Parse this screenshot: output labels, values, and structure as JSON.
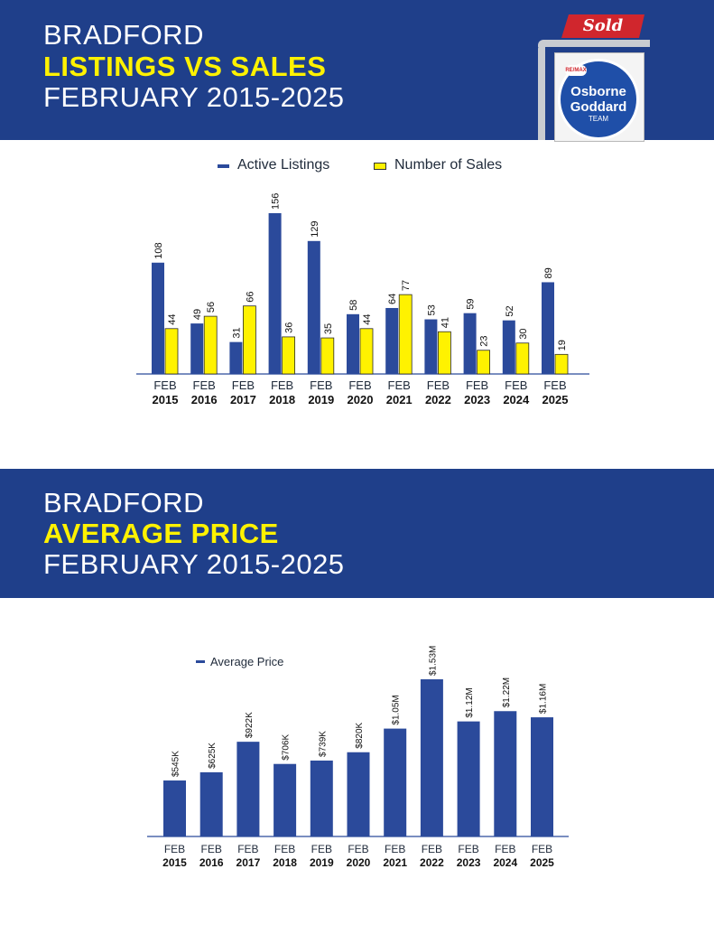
{
  "header1": {
    "line1": "BRADFORD",
    "line2": "LISTINGS VS SALES",
    "line3": "FEBRUARY 2015-2025"
  },
  "header2": {
    "line1": "BRADFORD",
    "line2": "AVERAGE PRICE",
    "line3": "FEBRUARY 2015-2025"
  },
  "logo": {
    "sold": "Sold",
    "remax": "RE/MAX",
    "line1": "Osborne",
    "line2": "Goddard",
    "line3": "TEAM"
  },
  "colors": {
    "banner": "#1f3f8a",
    "highlight": "#fff200",
    "bar_blue": "#2b4a9b",
    "bar_yellow": "#fff200"
  },
  "chart_data": [
    {
      "type": "bar",
      "categories": [
        [
          "FEB",
          "2015"
        ],
        [
          "FEB",
          "2016"
        ],
        [
          "FEB",
          "2017"
        ],
        [
          "FEB",
          "2018"
        ],
        [
          "FEB",
          "2019"
        ],
        [
          "FEB",
          "2020"
        ],
        [
          "FEB",
          "2021"
        ],
        [
          "FEB",
          "2022"
        ],
        [
          "FEB",
          "2023"
        ],
        [
          "FEB",
          "2024"
        ],
        [
          "FEB",
          "2025"
        ]
      ],
      "series": [
        {
          "name": "Active Listings",
          "values": [
            108,
            49,
            31,
            156,
            129,
            58,
            64,
            53,
            59,
            52,
            89
          ],
          "color": "#2b4a9b"
        },
        {
          "name": "Number of Sales",
          "values": [
            44,
            56,
            66,
            36,
            35,
            44,
            77,
            41,
            23,
            30,
            19
          ],
          "color": "#fff200"
        }
      ],
      "ylim": [
        0,
        156
      ],
      "legend": "top-center",
      "grid": false
    },
    {
      "type": "bar",
      "categories": [
        [
          "FEB",
          "2015"
        ],
        [
          "FEB",
          "2016"
        ],
        [
          "FEB",
          "2017"
        ],
        [
          "FEB",
          "2018"
        ],
        [
          "FEB",
          "2019"
        ],
        [
          "FEB",
          "2020"
        ],
        [
          "FEB",
          "2021"
        ],
        [
          "FEB",
          "2022"
        ],
        [
          "FEB",
          "2023"
        ],
        [
          "FEB",
          "2024"
        ],
        [
          "FEB",
          "2025"
        ]
      ],
      "series": [
        {
          "name": "Average Price",
          "values": [
            545000,
            625000,
            922000,
            706000,
            739000,
            820000,
            1050000,
            1530000,
            1120000,
            1220000,
            1160000
          ],
          "labels": [
            "$545K",
            "$625K",
            "$922K",
            "$706K",
            "$739K",
            "$820K",
            "$1.05M",
            "$1.53M",
            "$1.12M",
            "$1.22M",
            "$1.16M"
          ],
          "color": "#2b4a9b"
        }
      ],
      "legend": "top-left",
      "grid": false
    }
  ]
}
